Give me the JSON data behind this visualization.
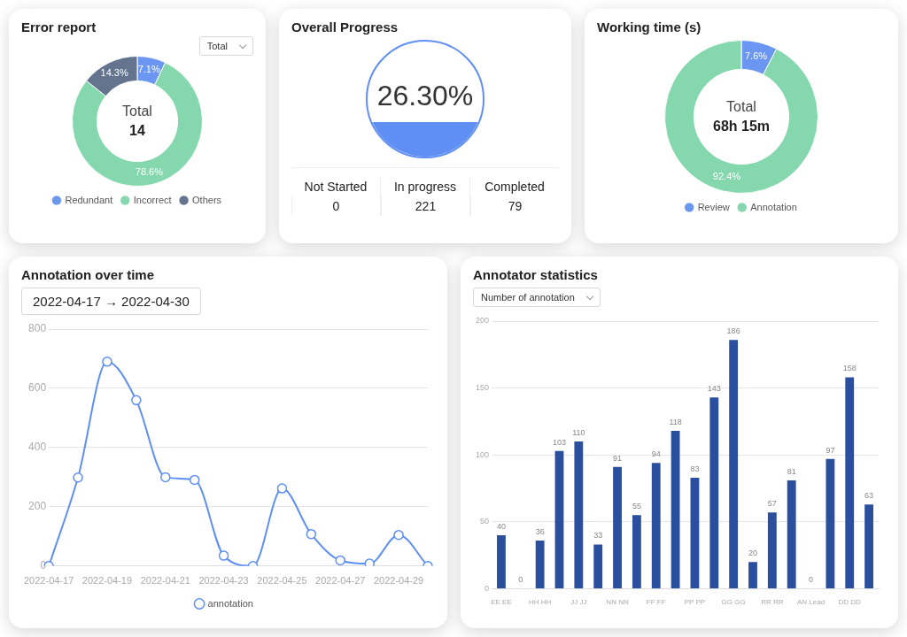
{
  "chart_data": [
    {
      "type": "donut",
      "title": "Error report",
      "categories": [
        "Redundant",
        "Incorrect",
        "Others"
      ],
      "values": [
        7.1,
        78.6,
        14.3
      ],
      "value_labels": [
        "7.1%",
        "78.6%",
        "14.3%"
      ],
      "colors": [
        "#6b97f2",
        "#85d7ae",
        "#64748f"
      ],
      "legend": "bottom",
      "annotations": [
        "Total",
        "Total",
        "14"
      ]
    },
    {
      "type": "other",
      "title": "Overall Progress",
      "categories": [
        "Not Started",
        "In progress",
        "Completed"
      ],
      "values": [
        0,
        221,
        79
      ],
      "data_labels": true,
      "annotations": [
        "26.30%"
      ]
    },
    {
      "type": "donut",
      "title": "Working time (s)",
      "categories": [
        "Review",
        "Annotation"
      ],
      "values": [
        7.6,
        92.4
      ],
      "value_labels": [
        "7.6%",
        "92.4%"
      ],
      "colors": [
        "#6b97f2",
        "#85d7ae"
      ],
      "legend": "bottom",
      "annotations": [
        "Total",
        "68h 15m"
      ]
    },
    {
      "type": "line",
      "title": "Annotation over time",
      "categories": [
        "2022-04-17",
        null,
        "2022-04-19",
        null,
        "2022-04-21",
        null,
        "2022-04-23",
        null,
        "2022-04-25",
        null,
        "2022-04-27",
        null,
        "2022-04-29",
        null
      ],
      "series": [
        {
          "name": "annotation",
          "color": "#5f8ff3",
          "values": [
            0,
            299,
            690,
            560,
            300,
            291,
            35,
            0,
            262,
            108,
            19,
            8,
            105,
            0
          ]
        }
      ],
      "ylim": [
        0,
        800
      ],
      "yticks": [
        0,
        200,
        400,
        600,
        800
      ],
      "grid": "y",
      "legend": "bottom",
      "marker": "circle",
      "line_style": "solid",
      "annotations": [
        "2022-04-17 → 2022-04-30"
      ]
    },
    {
      "type": "bar",
      "title": "Annotator statistics",
      "categories": [
        "EE EE",
        null,
        "HH HH",
        null,
        "JJ JJ",
        null,
        "NN NN",
        null,
        "FF FF",
        null,
        "PP PP",
        null,
        "GG GG",
        null,
        "RR RR",
        null,
        "AN Lead",
        null,
        "DD DD",
        null
      ],
      "values": [
        40,
        0,
        36,
        103,
        110,
        33,
        91,
        55,
        94,
        118,
        83,
        143,
        186,
        20,
        57,
        81,
        0,
        97,
        158,
        63
      ],
      "color": "#2a4f9e",
      "ylim": [
        0,
        200
      ],
      "yticks": [
        0,
        50,
        100,
        150,
        200
      ],
      "grid": "y",
      "data_labels": true,
      "annotations": [
        "Number of annotation"
      ]
    }
  ]
}
